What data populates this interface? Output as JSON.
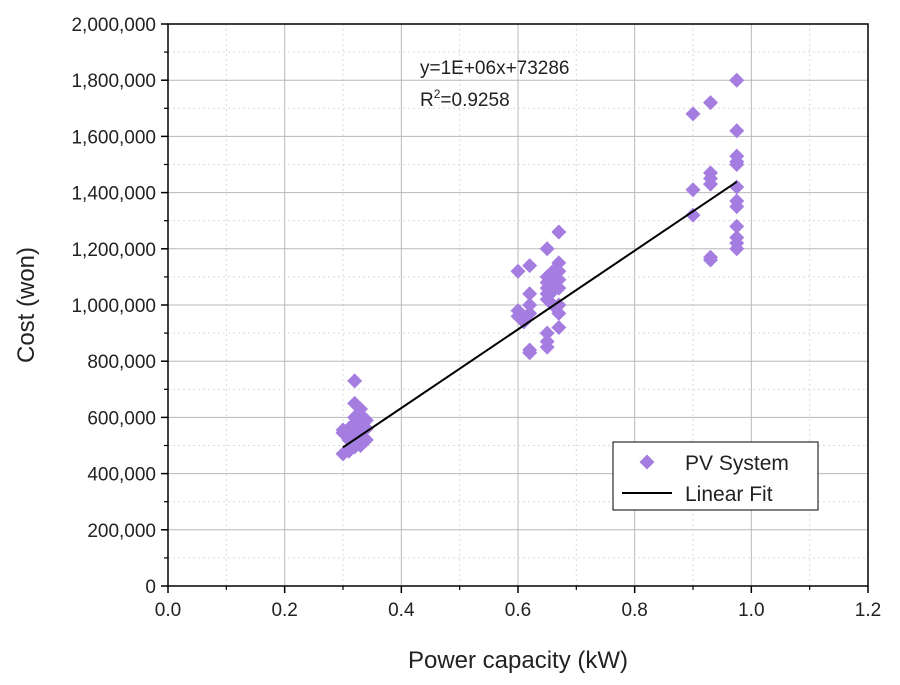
{
  "chart_data": {
    "type": "scatter",
    "title": "",
    "xlabel": "Power capacity (kW)",
    "ylabel": "Cost (won)",
    "xlim": [
      0.0,
      1.2
    ],
    "ylim": [
      0,
      2000000
    ],
    "x_ticks": [
      0.0,
      0.2,
      0.4,
      0.6,
      0.8,
      1.0,
      1.2
    ],
    "x_tick_labels": [
      "0.0",
      "0.2",
      "0.4",
      "0.6",
      "0.8",
      "1.0",
      "1.2"
    ],
    "y_ticks": [
      0,
      200000,
      400000,
      600000,
      800000,
      1000000,
      1200000,
      1400000,
      1600000,
      1800000,
      2000000
    ],
    "y_tick_labels": [
      "0",
      "200,000",
      "400,000",
      "600,000",
      "800,000",
      "1,000,000",
      "1,200,000",
      "1,400,000",
      "1,600,000",
      "1,800,000",
      "2,000,000"
    ],
    "grid": true,
    "legend_position": "bottom-right",
    "annotation": {
      "equation": "y=1E+06x+73286",
      "r2_prefix": "R",
      "r2_sup": "2",
      "r2_value": "=0.9258"
    },
    "series": [
      {
        "name": "PV System",
        "kind": "scatter",
        "marker": "diamond",
        "color": "#a57de0",
        "points": [
          [
            0.3,
            470000
          ],
          [
            0.3,
            545000
          ],
          [
            0.3,
            555000
          ],
          [
            0.31,
            480000
          ],
          [
            0.31,
            520000
          ],
          [
            0.31,
            540000
          ],
          [
            0.31,
            560000
          ],
          [
            0.32,
            730000
          ],
          [
            0.32,
            495000
          ],
          [
            0.32,
            510000
          ],
          [
            0.32,
            530000
          ],
          [
            0.32,
            560000
          ],
          [
            0.32,
            580000
          ],
          [
            0.32,
            600000
          ],
          [
            0.32,
            650000
          ],
          [
            0.33,
            500000
          ],
          [
            0.33,
            540000
          ],
          [
            0.33,
            570000
          ],
          [
            0.33,
            590000
          ],
          [
            0.33,
            610000
          ],
          [
            0.33,
            630000
          ],
          [
            0.34,
            520000
          ],
          [
            0.34,
            560000
          ],
          [
            0.34,
            590000
          ],
          [
            0.6,
            1120000
          ],
          [
            0.6,
            980000
          ],
          [
            0.6,
            960000
          ],
          [
            0.61,
            940000
          ],
          [
            0.62,
            1140000
          ],
          [
            0.62,
            1040000
          ],
          [
            0.62,
            1000000
          ],
          [
            0.62,
            970000
          ],
          [
            0.62,
            840000
          ],
          [
            0.62,
            830000
          ],
          [
            0.65,
            1200000
          ],
          [
            0.65,
            1100000
          ],
          [
            0.65,
            1080000
          ],
          [
            0.65,
            1060000
          ],
          [
            0.65,
            1040000
          ],
          [
            0.65,
            1020000
          ],
          [
            0.65,
            900000
          ],
          [
            0.65,
            870000
          ],
          [
            0.65,
            850000
          ],
          [
            0.66,
            1120000
          ],
          [
            0.66,
            1080000
          ],
          [
            0.66,
            1050000
          ],
          [
            0.66,
            1000000
          ],
          [
            0.67,
            1260000
          ],
          [
            0.67,
            1150000
          ],
          [
            0.67,
            1120000
          ],
          [
            0.67,
            1090000
          ],
          [
            0.67,
            1060000
          ],
          [
            0.67,
            1000000
          ],
          [
            0.67,
            970000
          ],
          [
            0.67,
            920000
          ],
          [
            0.9,
            1680000
          ],
          [
            0.9,
            1410000
          ],
          [
            0.9,
            1320000
          ],
          [
            0.93,
            1720000
          ],
          [
            0.93,
            1470000
          ],
          [
            0.93,
            1450000
          ],
          [
            0.93,
            1430000
          ],
          [
            0.93,
            1170000
          ],
          [
            0.93,
            1160000
          ],
          [
            0.975,
            1800000
          ],
          [
            0.975,
            1620000
          ],
          [
            0.975,
            1530000
          ],
          [
            0.975,
            1510000
          ],
          [
            0.975,
            1500000
          ],
          [
            0.975,
            1420000
          ],
          [
            0.975,
            1370000
          ],
          [
            0.975,
            1350000
          ],
          [
            0.975,
            1280000
          ],
          [
            0.975,
            1240000
          ],
          [
            0.975,
            1220000
          ],
          [
            0.975,
            1200000
          ]
        ]
      },
      {
        "name": "Linear Fit",
        "kind": "line",
        "color": "#000000",
        "slope": 1400000,
        "intercept": 73286,
        "x_range": [
          0.3,
          0.975
        ]
      }
    ]
  }
}
